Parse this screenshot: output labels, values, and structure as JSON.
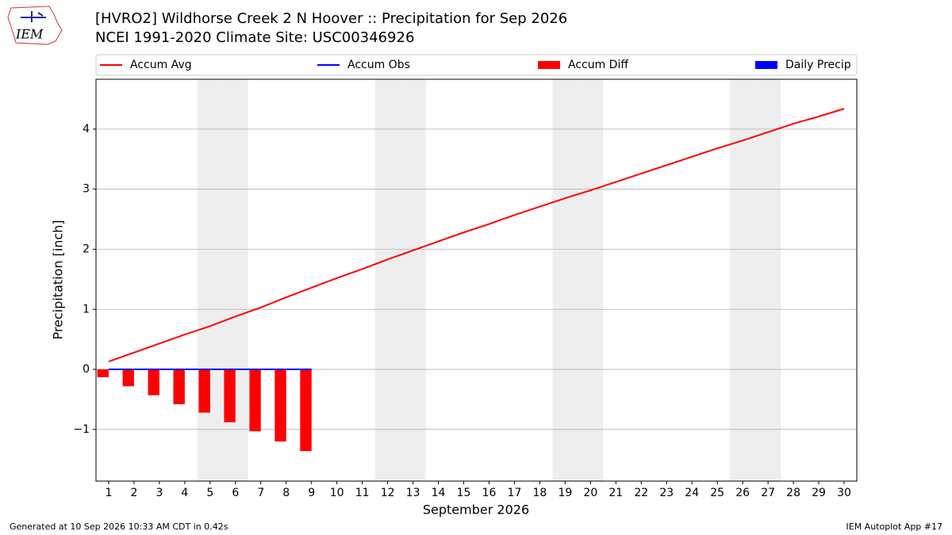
{
  "chart_data": {
    "type": "line",
    "title": "[HVRO2] Wildhorse Creek 2 N Hoover :: Precipitation for Sep 2026",
    "subtitle": "NCEI 1991-2020 Climate Site: USC00346926",
    "x_label": "September 2026",
    "y_label": "Precipitation [inch]",
    "logo_text": "IEM",
    "footer_left": "Generated at 10 Sep 2026 10:33 AM CDT in 0.42s",
    "footer_right": "IEM Autoplot App #17",
    "x": [
      1,
      2,
      3,
      4,
      5,
      6,
      7,
      8,
      9,
      10,
      11,
      12,
      13,
      14,
      15,
      16,
      17,
      18,
      19,
      20,
      21,
      22,
      23,
      24,
      25,
      26,
      27,
      28,
      29,
      30
    ],
    "xlim": [
      0.5,
      30.5
    ],
    "xticks": [
      1,
      2,
      3,
      4,
      5,
      6,
      7,
      8,
      9,
      10,
      11,
      12,
      13,
      14,
      15,
      16,
      17,
      18,
      19,
      20,
      21,
      22,
      23,
      24,
      25,
      26,
      27,
      28,
      29,
      30
    ],
    "ylim": [
      -1.86,
      4.83
    ],
    "yticks": [
      {
        "value": -1,
        "label": "−1"
      },
      0,
      1,
      2,
      3,
      4
    ],
    "grid": true,
    "shaded_days": [
      5,
      6,
      12,
      13,
      19,
      20,
      26,
      27
    ],
    "series": [
      {
        "name": "Accum Avg",
        "kind": "line",
        "color": "#ff0000",
        "values": [
          0.13,
          0.28,
          0.43,
          0.58,
          0.72,
          0.88,
          1.03,
          1.2,
          1.36,
          1.52,
          1.67,
          1.83,
          1.98,
          2.13,
          2.28,
          2.42,
          2.57,
          2.71,
          2.85,
          2.98,
          3.12,
          3.26,
          3.4,
          3.54,
          3.68,
          3.81,
          3.95,
          4.09,
          4.21,
          4.34
        ]
      },
      {
        "name": "Accum Obs",
        "kind": "line",
        "color": "#0000ff",
        "values": [
          0,
          0,
          0,
          0,
          0,
          0,
          0,
          0,
          0,
          null,
          null,
          null,
          null,
          null,
          null,
          null,
          null,
          null,
          null,
          null,
          null,
          null,
          null,
          null,
          null,
          null,
          null,
          null,
          null,
          null
        ]
      },
      {
        "name": "Accum Diff",
        "kind": "bar",
        "color": "#ff0000",
        "values": [
          -0.13,
          -0.28,
          -0.43,
          -0.58,
          -0.72,
          -0.88,
          -1.03,
          -1.2,
          -1.36,
          null,
          null,
          null,
          null,
          null,
          null,
          null,
          null,
          null,
          null,
          null,
          null,
          null,
          null,
          null,
          null,
          null,
          null,
          null,
          null,
          null
        ]
      },
      {
        "name": "Daily Precip",
        "kind": "bar",
        "color": "#0000ff",
        "values": [
          0,
          0,
          0,
          0,
          0,
          0,
          0,
          0,
          0,
          null,
          null,
          null,
          null,
          null,
          null,
          null,
          null,
          null,
          null,
          null,
          null,
          null,
          null,
          null,
          null,
          null,
          null,
          null,
          null,
          null
        ]
      }
    ]
  }
}
